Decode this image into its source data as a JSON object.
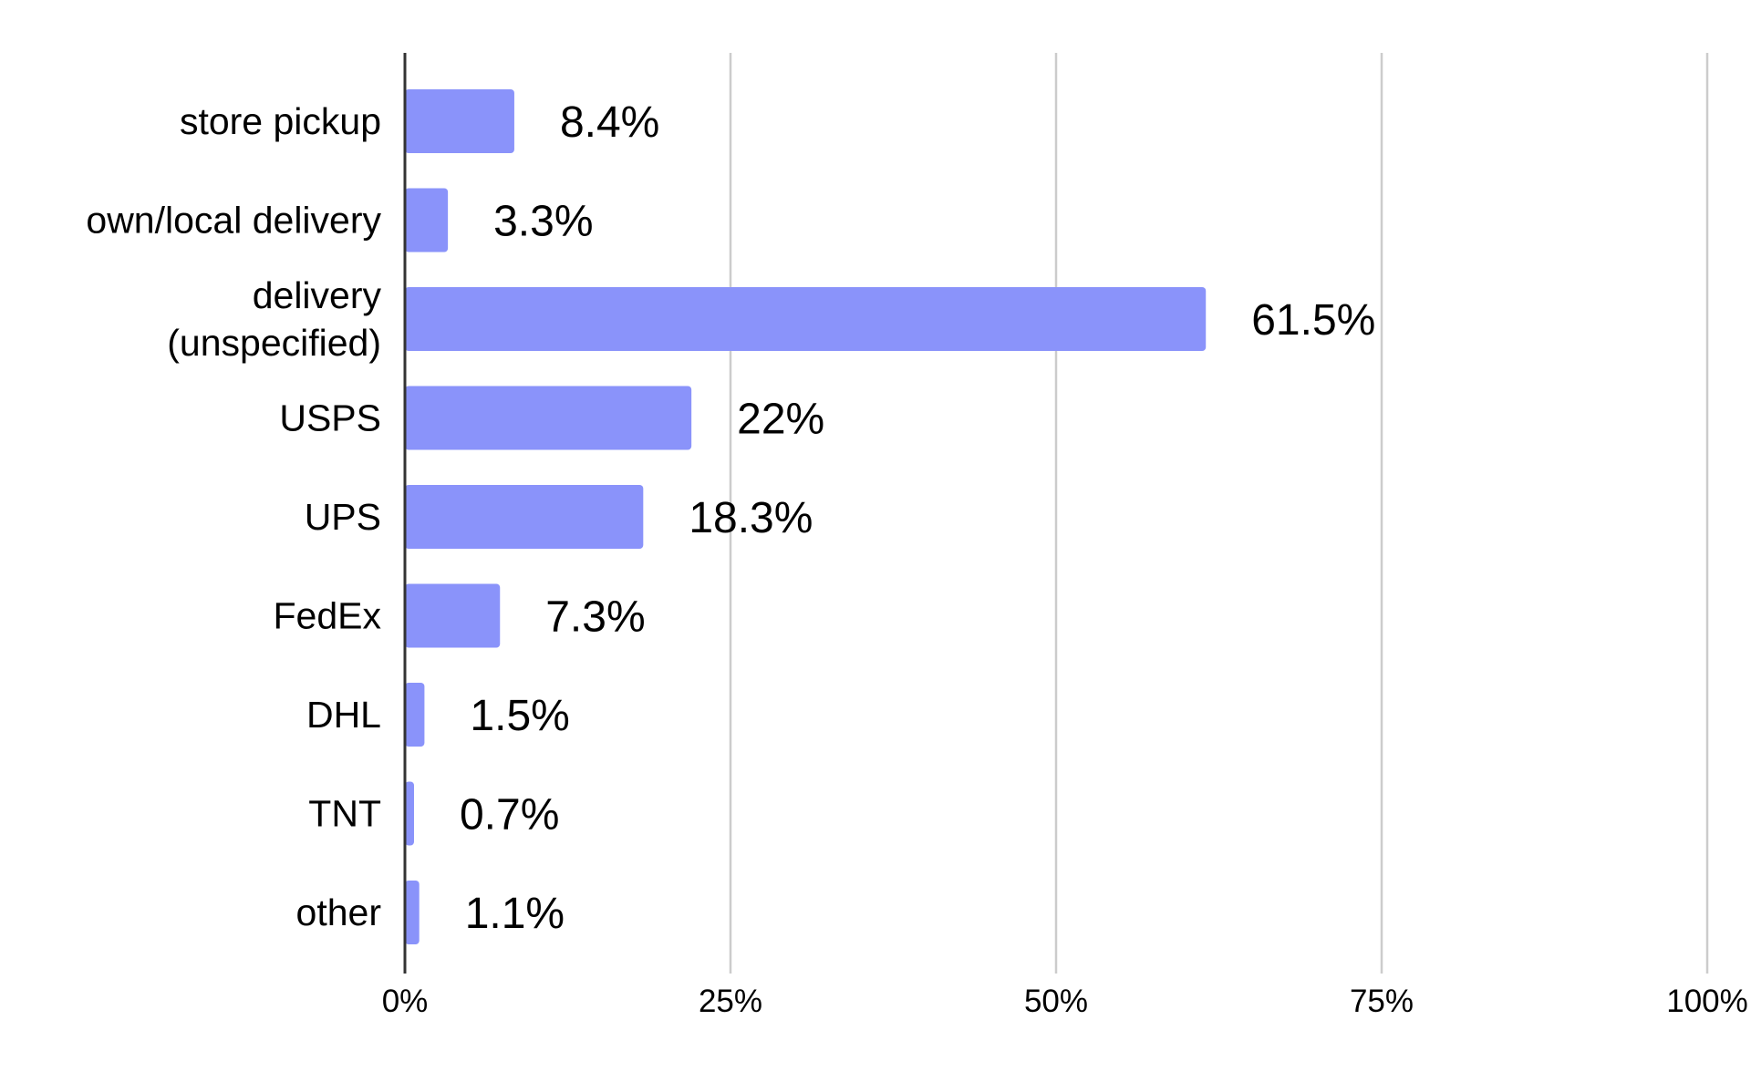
{
  "chart_data": {
    "type": "bar",
    "orientation": "horizontal",
    "categories": [
      "store pickup",
      "own/local delivery",
      "delivery (unspecified)",
      "USPS",
      "UPS",
      "FedEx",
      "DHL",
      "TNT",
      "other"
    ],
    "values": [
      8.4,
      3.3,
      61.5,
      22,
      18.3,
      7.3,
      1.5,
      0.7,
      1.1
    ],
    "value_labels": [
      "8.4%",
      "3.3%",
      "61.5%",
      "22%",
      "18.3%",
      "7.3%",
      "1.5%",
      "0.7%",
      "1.1%"
    ],
    "title": "",
    "xlabel": "",
    "ylabel": "",
    "xlim": [
      0,
      100
    ],
    "x_ticks": [
      0,
      25,
      50,
      75,
      100
    ],
    "x_tick_labels": [
      "0%",
      "25%",
      "50%",
      "75%",
      "100%"
    ],
    "grid": "vertical",
    "legend": "none",
    "colors": {
      "bar": "#8a93fa",
      "grid": "#cccccc",
      "axis": "#333333",
      "text": "#000000"
    }
  }
}
